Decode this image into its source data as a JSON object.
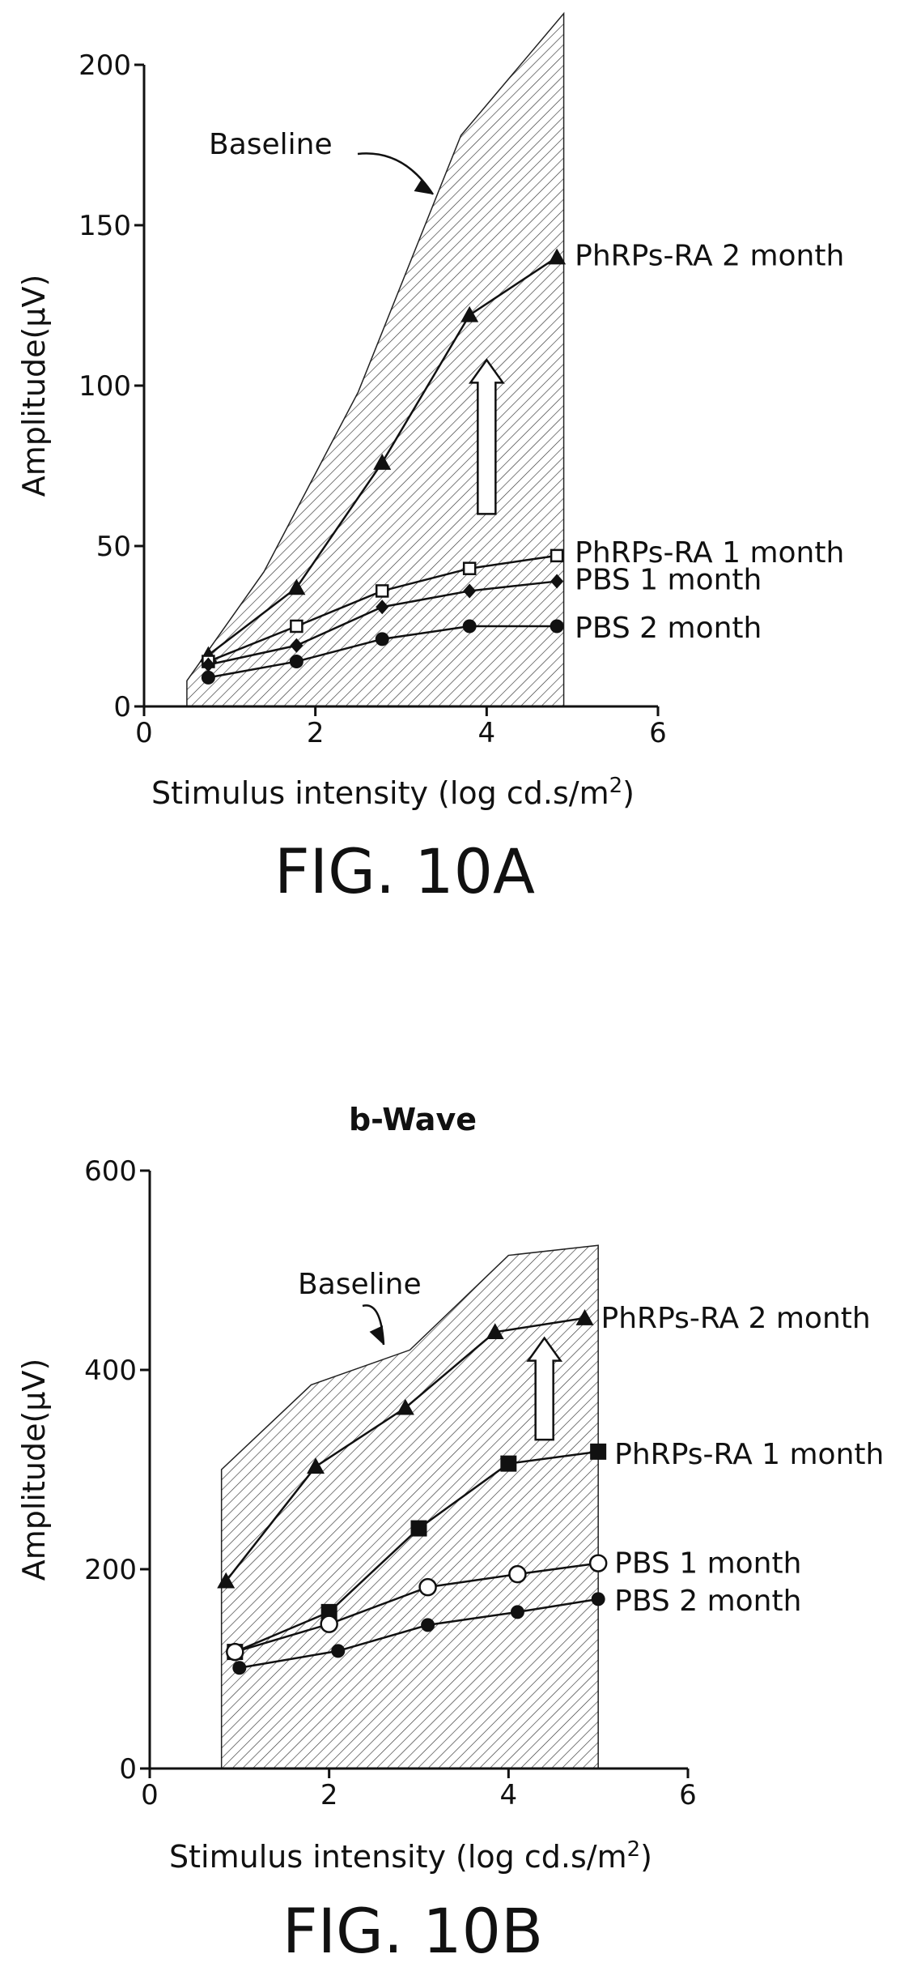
{
  "chart_data": [
    {
      "type": "line",
      "title": "",
      "figure_label": "FIG. 10A",
      "xlabel": "Stimulus intensity (log cd.s/m",
      "xlabel_sup": "2",
      "xlabel_close": ")",
      "ylabel": "Amplitude(μV)",
      "xlim": [
        0,
        6
      ],
      "ylim": [
        0,
        200
      ],
      "xticks": [
        "0",
        "2",
        "4",
        "6"
      ],
      "yticks": [
        "0",
        "50",
        "100",
        "150",
        "200"
      ],
      "grid": false,
      "baseline_label": "Baseline",
      "baseline_band": {
        "upper": [
          [
            0.5,
            8
          ],
          [
            1.4,
            42
          ],
          [
            2.5,
            98
          ],
          [
            3.7,
            178
          ],
          [
            4.9,
            216
          ]
        ],
        "lower": [
          [
            0.5,
            0
          ],
          [
            4.9,
            0
          ]
        ]
      },
      "improvement_arrow": {
        "x": 4.0,
        "y_from": 60,
        "y_to": 108
      },
      "series": [
        {
          "name": "PhRPs-RA 2 month",
          "marker": "triangle",
          "x": [
            0.75,
            1.78,
            2.78,
            3.8,
            4.82
          ],
          "y": [
            16,
            37,
            76,
            122,
            140
          ]
        },
        {
          "name": "PhRPs-RA 1 month",
          "marker": "square-open",
          "x": [
            0.75,
            1.78,
            2.78,
            3.8,
            4.82
          ],
          "y": [
            14,
            25,
            36,
            43,
            47
          ]
        },
        {
          "name": "PBS 1 month",
          "marker": "diamond",
          "x": [
            0.75,
            1.78,
            2.78,
            3.8,
            4.82
          ],
          "y": [
            13,
            19,
            31,
            36,
            39
          ]
        },
        {
          "name": "PBS 2 month",
          "marker": "circle",
          "x": [
            0.75,
            1.78,
            2.78,
            3.8,
            4.82
          ],
          "y": [
            9,
            14,
            21,
            25,
            25
          ]
        }
      ]
    },
    {
      "type": "line",
      "title": "b-Wave",
      "figure_label": "FIG. 10B",
      "xlabel": "Stimulus intensity (log cd.s/m",
      "xlabel_sup": "2",
      "xlabel_close": ")",
      "ylabel": "Amplitude(μV)",
      "xlim": [
        0,
        6
      ],
      "ylim": [
        0,
        600
      ],
      "xticks": [
        "0",
        "2",
        "4",
        "6"
      ],
      "yticks": [
        "0",
        "200",
        "400",
        "600"
      ],
      "grid": false,
      "baseline_label": "Baseline",
      "baseline_band": {
        "upper": [
          [
            0.8,
            300
          ],
          [
            1.8,
            385
          ],
          [
            2.9,
            420
          ],
          [
            4.0,
            515
          ],
          [
            5.0,
            525
          ]
        ],
        "lower": [
          [
            0.8,
            0
          ],
          [
            5.0,
            0
          ]
        ]
      },
      "improvement_arrow": {
        "x": 4.4,
        "y_from": 330,
        "y_to": 432
      },
      "series": [
        {
          "name": "PhRPs-RA 2 month",
          "marker": "triangle",
          "x": [
            0.85,
            1.85,
            2.85,
            3.85,
            4.85
          ],
          "y": [
            188,
            303,
            362,
            438,
            452
          ]
        },
        {
          "name": "PhRPs-RA 1 month",
          "marker": "square",
          "x": [
            0.95,
            2.0,
            3.0,
            4.0,
            5.0
          ],
          "y": [
            117,
            157,
            241,
            306,
            318
          ]
        },
        {
          "name": "PBS 1 month",
          "marker": "circle-open",
          "x": [
            0.95,
            2.0,
            3.1,
            4.1,
            5.0
          ],
          "y": [
            117,
            145,
            182,
            195,
            206
          ]
        },
        {
          "name": "PBS 2 month",
          "marker": "circle",
          "x": [
            1.0,
            2.1,
            3.1,
            4.1,
            5.0
          ],
          "y": [
            101,
            118,
            144,
            157,
            170
          ]
        }
      ]
    }
  ]
}
